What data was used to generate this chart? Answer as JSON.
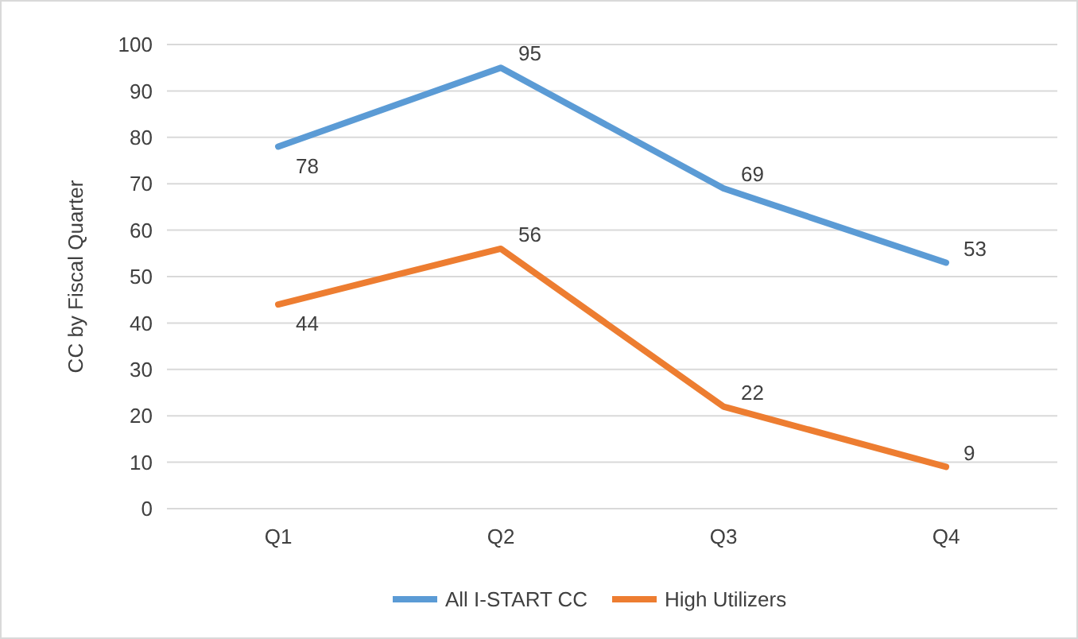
{
  "chart_data": {
    "type": "line",
    "ylabel": "CC by Fiscal Quarter",
    "categories": [
      "Q1",
      "Q2",
      "Q3",
      "Q4"
    ],
    "series": [
      {
        "name": "All I-START CC",
        "color": "#5b9bd5",
        "values": [
          78,
          95,
          69,
          53
        ]
      },
      {
        "name": "High Utilizers",
        "color": "#ed7d31",
        "values": [
          44,
          56,
          22,
          9
        ]
      }
    ],
    "ylim": [
      0,
      100
    ],
    "yticks": [
      0,
      10,
      20,
      30,
      40,
      50,
      60,
      70,
      80,
      90,
      100
    ],
    "grid": "y",
    "legend": "bottom",
    "data_labels": true,
    "marker": "none",
    "line_style": "solid"
  }
}
